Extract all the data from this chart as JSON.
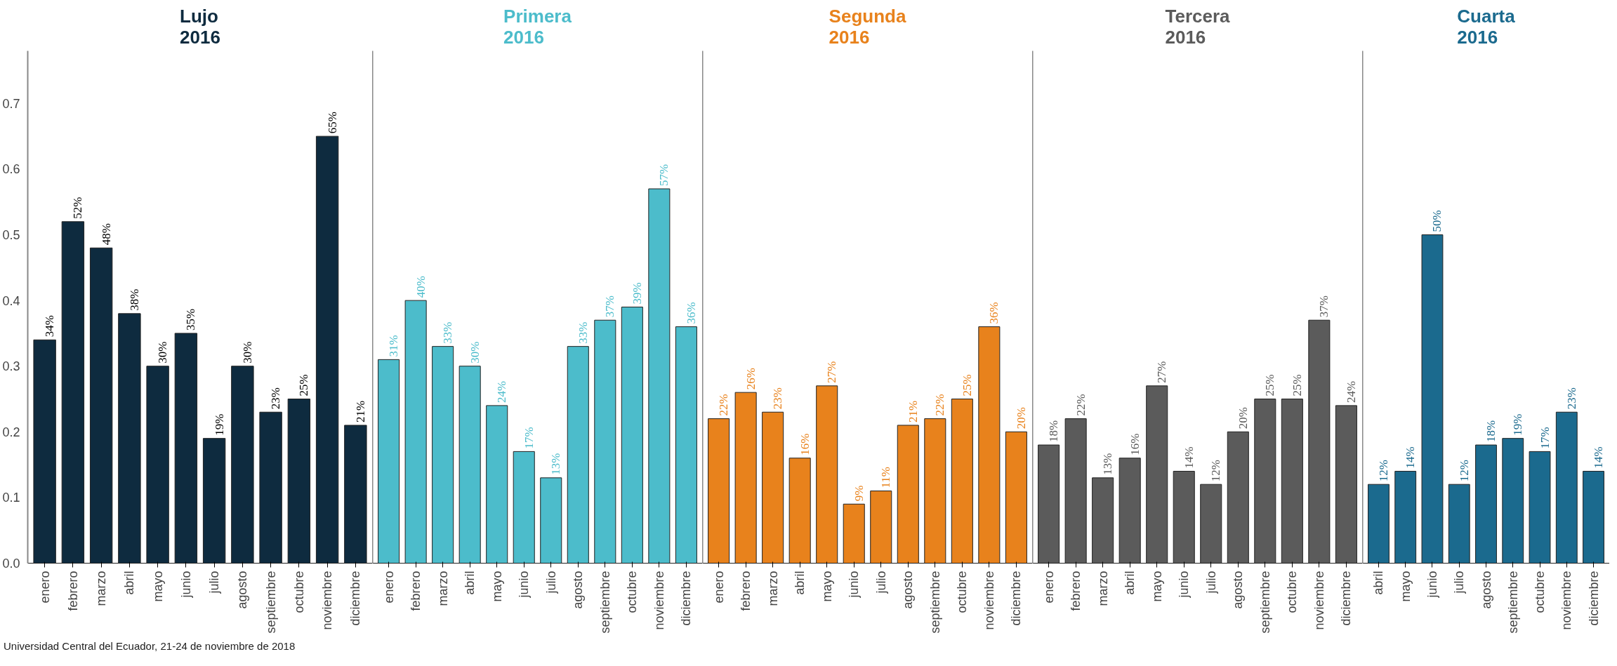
{
  "chart_data": [
    {
      "type": "bar",
      "title": "Lujo\n2016",
      "categories": [
        "enero",
        "febrero",
        "marzo",
        "abril",
        "mayo",
        "junio",
        "julio",
        "agosto",
        "septiembre",
        "octubre",
        "noviembre",
        "diciembre"
      ],
      "values": [
        0.34,
        0.52,
        0.48,
        0.38,
        0.3,
        0.35,
        0.19,
        0.3,
        0.23,
        0.25,
        0.65,
        0.21
      ],
      "value_labels": [
        "34%",
        "52%",
        "48%",
        "38%",
        "30%",
        "35%",
        "19%",
        "30%",
        "23%",
        "25%",
        "65%",
        "21%"
      ],
      "color": "#0e2b3f",
      "ylim": [
        0,
        0.78
      ],
      "yticks": [
        {
          "value": 0,
          "label": "0.0"
        },
        0.1,
        0.2,
        0.3,
        0.4,
        0.5,
        0.6,
        0.7
      ],
      "annotations": [
        "Universidad Central del Ecuador, 21-24 de noviembre de 2018"
      ]
    },
    {
      "type": "bar",
      "title": "Primera\n2016",
      "categories": [
        "enero",
        "febrero",
        "marzo",
        "abril",
        "mayo",
        "junio",
        "julio",
        "agosto",
        "septiembre",
        "octubre",
        "noviembre",
        "diciembre"
      ],
      "values": [
        0.31,
        0.4,
        0.33,
        0.3,
        0.24,
        0.17,
        0.13,
        0.33,
        0.37,
        0.39,
        0.57,
        0.36
      ],
      "value_labels": [
        "31%",
        "40%",
        "33%",
        "30%",
        "24%",
        "17%",
        "13%",
        "33%",
        "37%",
        "39%",
        "57%",
        "36%"
      ],
      "color": "#4cbccb",
      "ylim": [
        0,
        0.78
      ],
      "tick_labels": "x"
    },
    {
      "type": "bar",
      "title": "Segunda\n2016",
      "categories": [
        "enero",
        "febrero",
        "marzo",
        "abril",
        "mayo",
        "junio",
        "julio",
        "agosto",
        "septiembre",
        "octubre",
        "noviembre",
        "diciembre"
      ],
      "values": [
        0.22,
        0.26,
        0.23,
        0.16,
        0.27,
        0.09,
        0.11,
        0.21,
        0.22,
        0.25,
        0.36,
        0.2
      ],
      "value_labels": [
        "22%",
        "26%",
        "23%",
        "16%",
        "27%",
        "9%",
        "11%",
        "21%",
        "22%",
        "25%",
        "36%",
        "20%"
      ],
      "color": "#e8821c",
      "ylim": [
        0,
        0.78
      ],
      "tick_labels": "x"
    },
    {
      "type": "bar",
      "title": "Tercera\n2016",
      "categories": [
        "enero",
        "febrero",
        "marzo",
        "abril",
        "mayo",
        "junio",
        "julio",
        "agosto",
        "septiembre",
        "octubre",
        "noviembre",
        "diciembre"
      ],
      "values": [
        0.18,
        0.22,
        0.13,
        0.16,
        0.27,
        0.14,
        0.12,
        0.2,
        0.25,
        0.25,
        0.37,
        0.24
      ],
      "value_labels": [
        "18%",
        "22%",
        "13%",
        "16%",
        "27%",
        "14%",
        "12%",
        "20%",
        "25%",
        "25%",
        "37%",
        "24%"
      ],
      "color": "#5b5b5b",
      "ylim": [
        0,
        0.78
      ],
      "tick_labels": "x"
    },
    {
      "type": "bar",
      "title": "Cuarta\n2016",
      "categories": [
        "abril",
        "mayo",
        "junio",
        "julio",
        "agosto",
        "septiembre",
        "octubre",
        "noviembre",
        "diciembre"
      ],
      "values": [
        0.12,
        0.14,
        0.5,
        0.12,
        0.18,
        0.19,
        0.17,
        0.23,
        0.14
      ],
      "value_labels": [
        "12%",
        "14%",
        "50%",
        "12%",
        "18%",
        "19%",
        "17%",
        "23%",
        "14%"
      ],
      "color": "#1b6a8e",
      "ylim": [
        0,
        0.78
      ],
      "tick_labels": "x"
    }
  ]
}
